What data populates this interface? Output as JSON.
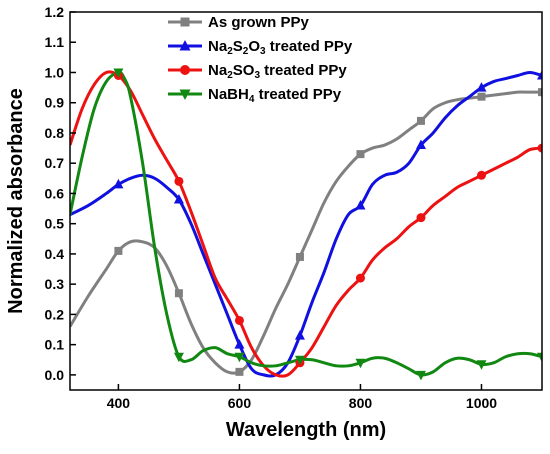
{
  "chart_data": {
    "type": "line",
    "xlabel": "Wavelength (nm)",
    "ylabel": "Normalized absorbance",
    "xlim": [
      320,
      1100
    ],
    "ylim": [
      -0.05,
      1.2
    ],
    "xticks": [
      400,
      600,
      800,
      1000
    ],
    "xtick_labels": [
      "400",
      "600",
      "800",
      "1000"
    ],
    "yticks": [
      0.0,
      0.1,
      0.2,
      0.3,
      0.4,
      0.5,
      0.6,
      0.7,
      0.8,
      0.9,
      1.0,
      1.1,
      1.2
    ],
    "ytick_labels": [
      "0.0",
      "0.1",
      "0.2",
      "0.3",
      "0.4",
      "0.5",
      "0.6",
      "0.7",
      "0.8",
      "0.9",
      "1.0",
      "1.1",
      "1.2"
    ],
    "grid": false,
    "legend_position": "top-right",
    "series": [
      {
        "name": "As grown PPy",
        "color": "#808080",
        "marker": "square",
        "x": [
          320,
          350,
          380,
          400,
          420,
          440,
          460,
          480,
          500,
          520,
          540,
          560,
          580,
          600,
          620,
          640,
          660,
          680,
          700,
          720,
          740,
          760,
          780,
          800,
          820,
          840,
          860,
          880,
          900,
          920,
          940,
          960,
          980,
          1000,
          1020,
          1040,
          1060,
          1080,
          1100
        ],
        "y": [
          0.16,
          0.26,
          0.35,
          0.41,
          0.44,
          0.44,
          0.42,
          0.36,
          0.27,
          0.17,
          0.09,
          0.04,
          0.01,
          0.01,
          0.05,
          0.13,
          0.22,
          0.3,
          0.39,
          0.48,
          0.57,
          0.64,
          0.69,
          0.73,
          0.75,
          0.76,
          0.78,
          0.81,
          0.84,
          0.88,
          0.9,
          0.91,
          0.915,
          0.92,
          0.925,
          0.93,
          0.935,
          0.935,
          0.935
        ],
        "marker_x": [
          400,
          500,
          600,
          700,
          800,
          900,
          1000,
          1100
        ]
      },
      {
        "name": "Na₂S₂O₃ treated PPy",
        "name_parts": {
          "pre": "Na",
          "sub1": "2",
          "mid": "S",
          "sub2": "2",
          "mid2": "O",
          "sub3": "3",
          "post": " treated PPy"
        },
        "color": "#1010e0",
        "marker": "triangle-up",
        "x": [
          320,
          350,
          380,
          400,
          420,
          440,
          460,
          480,
          500,
          520,
          540,
          560,
          580,
          600,
          620,
          640,
          660,
          680,
          700,
          720,
          740,
          760,
          780,
          800,
          820,
          840,
          860,
          880,
          900,
          920,
          940,
          960,
          980,
          1000,
          1020,
          1040,
          1060,
          1080,
          1100
        ],
        "y": [
          0.53,
          0.56,
          0.6,
          0.63,
          0.65,
          0.66,
          0.65,
          0.62,
          0.58,
          0.5,
          0.4,
          0.3,
          0.2,
          0.1,
          0.02,
          0.0,
          0.0,
          0.04,
          0.13,
          0.24,
          0.34,
          0.45,
          0.53,
          0.56,
          0.63,
          0.66,
          0.67,
          0.7,
          0.76,
          0.8,
          0.85,
          0.89,
          0.92,
          0.95,
          0.97,
          0.98,
          0.99,
          1.0,
          0.99
        ],
        "marker_x": [
          400,
          500,
          600,
          700,
          800,
          900,
          1000,
          1100
        ]
      },
      {
        "name": "Na₂SO₃ treated PPy",
        "name_parts": {
          "pre": "Na",
          "sub1": "2",
          "mid": "SO",
          "sub2": "3",
          "post": " treated PPy"
        },
        "color": "#ee1111",
        "marker": "circle",
        "x": [
          320,
          340,
          360,
          380,
          400,
          420,
          440,
          460,
          480,
          500,
          520,
          540,
          560,
          580,
          600,
          620,
          640,
          660,
          680,
          700,
          720,
          740,
          760,
          780,
          800,
          820,
          840,
          860,
          880,
          900,
          920,
          940,
          960,
          980,
          1000,
          1020,
          1040,
          1060,
          1080,
          1100
        ],
        "y": [
          0.76,
          0.88,
          0.96,
          1.0,
          0.99,
          0.94,
          0.86,
          0.78,
          0.71,
          0.64,
          0.54,
          0.43,
          0.32,
          0.25,
          0.18,
          0.09,
          0.03,
          0.0,
          0.0,
          0.04,
          0.09,
          0.16,
          0.23,
          0.28,
          0.32,
          0.38,
          0.42,
          0.45,
          0.49,
          0.52,
          0.56,
          0.59,
          0.62,
          0.64,
          0.66,
          0.68,
          0.7,
          0.72,
          0.745,
          0.75
        ],
        "marker_x": [
          400,
          500,
          600,
          700,
          800,
          900,
          1000,
          1100
        ]
      },
      {
        "name": "NaBH₄ treated PPy",
        "name_parts": {
          "pre": "NaBH",
          "sub1": "4",
          "post": " treated PPy"
        },
        "color": "#118811",
        "marker": "triangle-down",
        "x": [
          320,
          340,
          360,
          380,
          400,
          410,
          420,
          440,
          460,
          480,
          500,
          520,
          540,
          560,
          580,
          600,
          620,
          640,
          660,
          680,
          700,
          720,
          740,
          760,
          780,
          800,
          820,
          840,
          860,
          880,
          900,
          920,
          940,
          960,
          980,
          1000,
          1020,
          1040,
          1060,
          1080,
          1100
        ],
        "y": [
          0.53,
          0.72,
          0.88,
          0.97,
          1.0,
          0.98,
          0.92,
          0.7,
          0.42,
          0.2,
          0.06,
          0.05,
          0.08,
          0.09,
          0.07,
          0.06,
          0.04,
          0.03,
          0.03,
          0.04,
          0.05,
          0.05,
          0.04,
          0.03,
          0.03,
          0.04,
          0.055,
          0.055,
          0.04,
          0.02,
          0.0,
          0.01,
          0.04,
          0.055,
          0.05,
          0.035,
          0.04,
          0.06,
          0.07,
          0.07,
          0.06
        ],
        "marker_x": [
          400,
          500,
          600,
          700,
          800,
          900,
          1000,
          1100
        ]
      }
    ]
  }
}
